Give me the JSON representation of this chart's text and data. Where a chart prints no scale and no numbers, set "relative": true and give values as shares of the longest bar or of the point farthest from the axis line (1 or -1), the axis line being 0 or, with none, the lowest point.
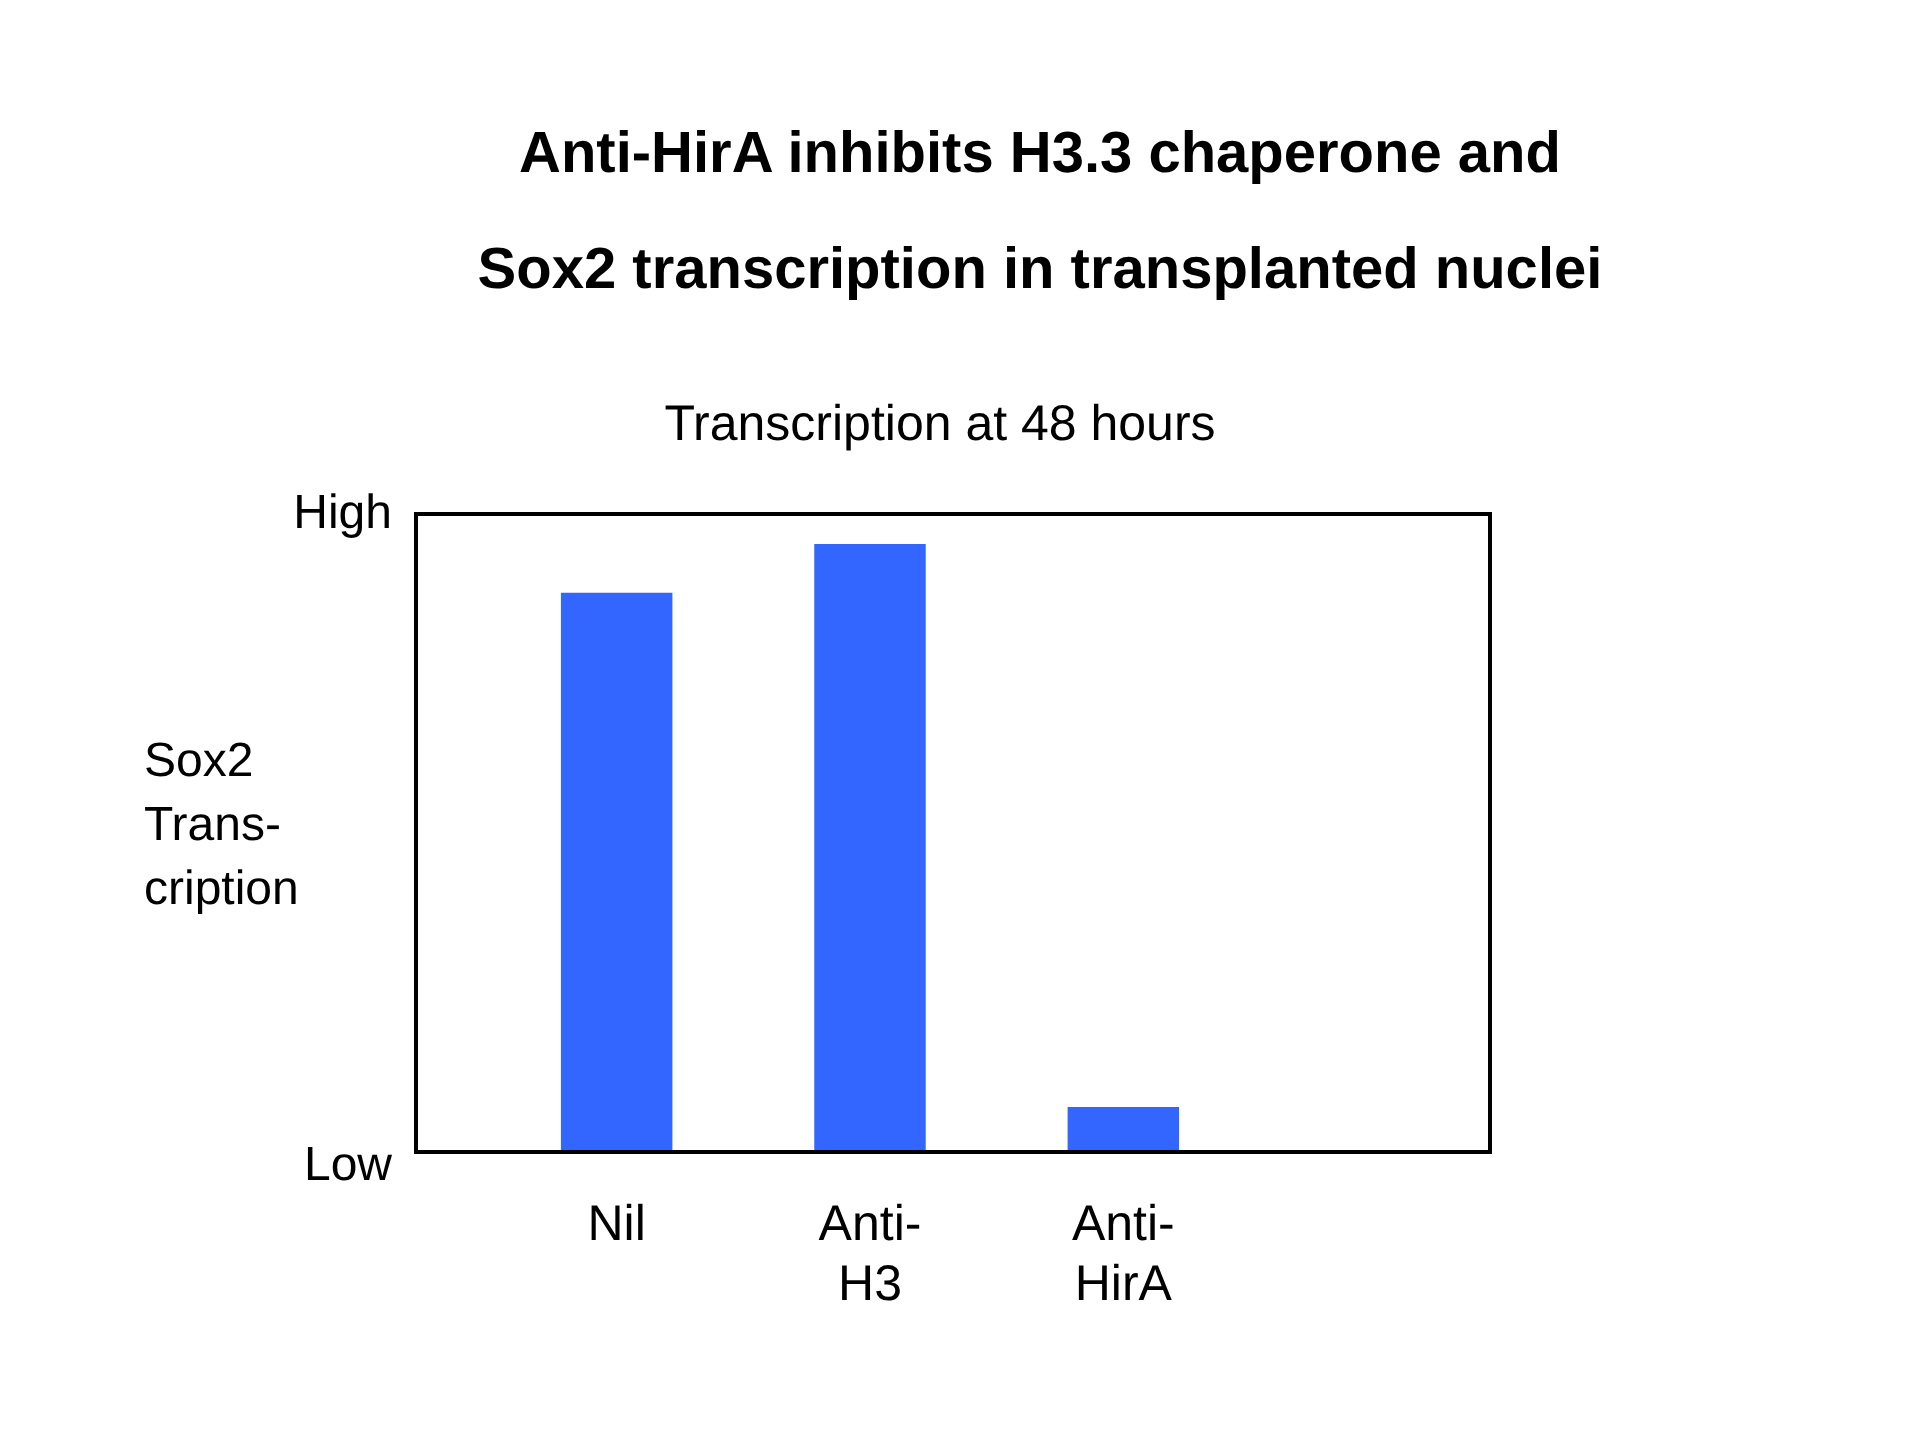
{
  "chart_data": {
    "type": "bar",
    "title": "Anti-HirA inhibits H3.3 chaperone and\nSox2 transcription in transplanted nuclei",
    "subtitle": "Transcription at 48 hours",
    "ylabel": "Sox2\nTrans-\ncription",
    "annotations": [
      "High",
      "Low"
    ],
    "categories": [
      "Nil",
      "Anti-\nH3",
      "Anti-\nHirA"
    ],
    "values": [
      0.92,
      1,
      0.074
    ],
    "color": "#3366ff",
    "relative": true,
    "grid": false,
    "legend": false
  }
}
